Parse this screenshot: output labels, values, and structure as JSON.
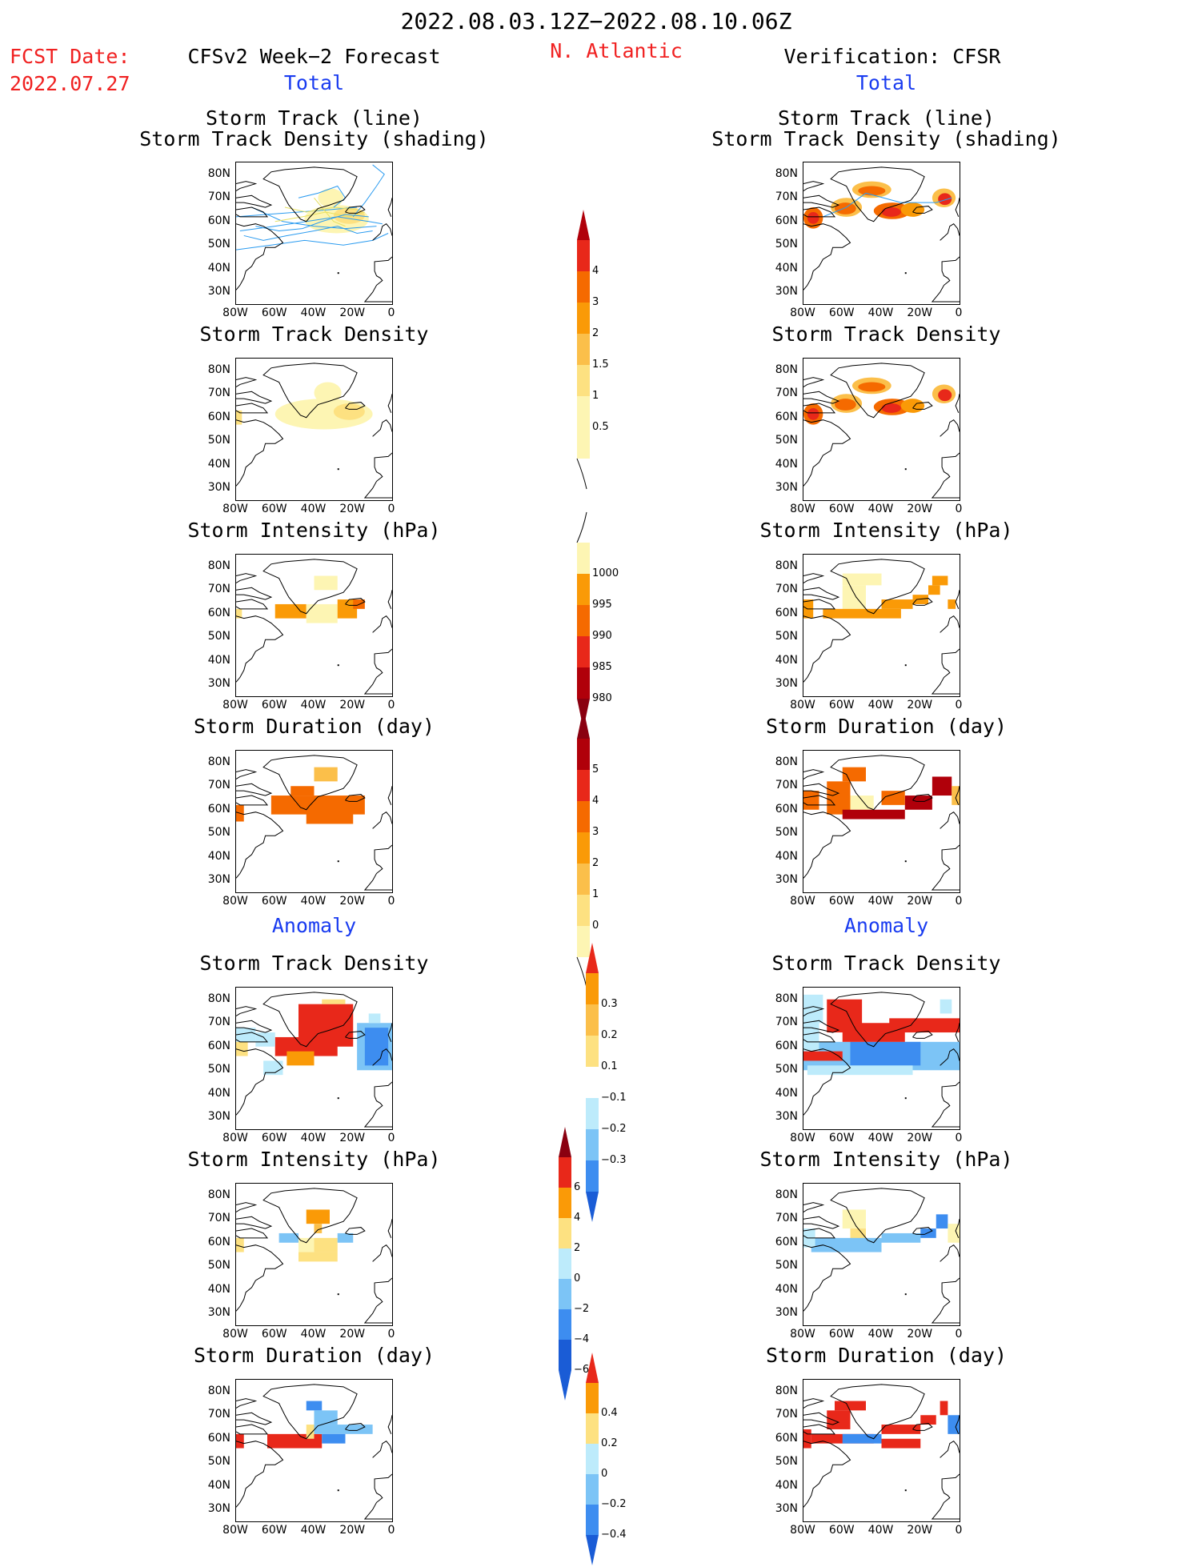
{
  "header": {
    "period": "2022.08.03.12Z−2022.08.10.06Z",
    "fcst_label": "FCST Date:",
    "fcst_date": "2022.07.27",
    "left_title": "CFSv2 Week−2 Forecast",
    "region": "N. Atlantic",
    "right_title": "Verification: CFSR",
    "total_left": "Total",
    "total_right": "Total",
    "anomaly_left": "Anomaly",
    "anomaly_right": "Anomaly"
  },
  "panel_titles": {
    "track_line": "Storm Track (line)",
    "track_density_shading": "Storm Track Density (shading)",
    "track_density": "Storm Track Density",
    "intensity": "Storm Intensity (hPa)",
    "duration": "Storm Duration (day)"
  },
  "axes": {
    "y_ticks": [
      "80N",
      "70N",
      "60N",
      "50N",
      "40N",
      "30N"
    ],
    "x_ticks": [
      "80W",
      "60W",
      "40W",
      "20W",
      "0"
    ]
  },
  "colors": {
    "cream": "#fdf5b3",
    "yellow": "#fde181",
    "light_orange": "#fbbf4a",
    "orange": "#fa9a07",
    "dark_orange": "#f56a00",
    "red": "#e8281a",
    "dark_red": "#b0000a",
    "very_dark_red": "#8a0010",
    "light_blue": "#bdebfb",
    "mid_blue": "#7cc4f6",
    "blue": "#3d8df0",
    "dark_blue": "#1a5cd6",
    "track_blue": "#2a9bf0",
    "track_yellow": "#e8e060"
  },
  "colorbars": [
    {
      "name": "track-density-total",
      "labels": [
        "4",
        "3",
        "2",
        "1.5",
        "1",
        "0.5"
      ]
    },
    {
      "name": "intensity-total",
      "labels": [
        "1000",
        "995",
        "990",
        "985",
        "980"
      ]
    },
    {
      "name": "duration-total",
      "labels": [
        "5",
        "4",
        "3",
        "2",
        "1",
        "0"
      ]
    },
    {
      "name": "track-density-anomaly",
      "labels": [
        "0.3",
        "0.2",
        "0.1",
        "−0.1",
        "−0.2",
        "−0.3"
      ]
    },
    {
      "name": "intensity-anomaly",
      "labels": [
        "6",
        "4",
        "2",
        "0",
        "−2",
        "−4",
        "−6"
      ]
    },
    {
      "name": "duration-anomaly",
      "labels": [
        "0.4",
        "0.2",
        "0",
        "−0.2",
        "−0.4"
      ]
    }
  ],
  "chart_data": [
    {
      "type": "heatmap",
      "panel": "forecast-track-total",
      "title": "Storm Track (line) Storm Track Density (shading)",
      "xlim": [
        -80,
        0
      ],
      "ylim": [
        25,
        85
      ],
      "series_note_colors": [
        "track_blue",
        "track_yellow"
      ]
    },
    {
      "type": "heatmap",
      "panel": "verification-track-total",
      "title": "Storm Track (line) Storm Track Density (shading)",
      "xlim": [
        -80,
        0
      ],
      "ylim": [
        25,
        85
      ]
    },
    {
      "type": "heatmap",
      "panel": "forecast-density-total",
      "title": "Storm Track Density",
      "xlim": [
        -80,
        0
      ],
      "ylim": [
        25,
        85
      ]
    },
    {
      "type": "heatmap",
      "panel": "verification-density-total",
      "title": "Storm Track Density",
      "xlim": [
        -80,
        0
      ],
      "ylim": [
        25,
        85
      ]
    },
    {
      "type": "heatmap",
      "panel": "forecast-intensity-total",
      "title": "Storm Intensity (hPa)",
      "xlim": [
        -80,
        0
      ],
      "ylim": [
        25,
        85
      ]
    },
    {
      "type": "heatmap",
      "panel": "verification-intensity-total",
      "title": "Storm Intensity (hPa)",
      "xlim": [
        -80,
        0
      ],
      "ylim": [
        25,
        85
      ]
    },
    {
      "type": "heatmap",
      "panel": "forecast-duration-total",
      "title": "Storm Duration (day)",
      "xlim": [
        -80,
        0
      ],
      "ylim": [
        25,
        85
      ]
    },
    {
      "type": "heatmap",
      "panel": "verification-duration-total",
      "title": "Storm Duration (day)",
      "xlim": [
        -80,
        0
      ],
      "ylim": [
        25,
        85
      ]
    },
    {
      "type": "heatmap",
      "panel": "forecast-density-anomaly",
      "title": "Storm Track Density",
      "xlim": [
        -80,
        0
      ],
      "ylim": [
        25,
        85
      ]
    },
    {
      "type": "heatmap",
      "panel": "verification-density-anomaly",
      "title": "Storm Track Density",
      "xlim": [
        -80,
        0
      ],
      "ylim": [
        25,
        85
      ]
    },
    {
      "type": "heatmap",
      "panel": "forecast-intensity-anomaly",
      "title": "Storm Intensity (hPa)",
      "xlim": [
        -80,
        0
      ],
      "ylim": [
        25,
        85
      ]
    },
    {
      "type": "heatmap",
      "panel": "verification-intensity-anomaly",
      "title": "Storm Intensity (hPa)",
      "xlim": [
        -80,
        0
      ],
      "ylim": [
        25,
        85
      ]
    },
    {
      "type": "heatmap",
      "panel": "forecast-duration-anomaly",
      "title": "Storm Duration (day)",
      "xlim": [
        -80,
        0
      ],
      "ylim": [
        25,
        85
      ]
    },
    {
      "type": "heatmap",
      "panel": "verification-duration-anomaly",
      "title": "Storm Duration (day)",
      "xlim": [
        -80,
        0
      ],
      "ylim": [
        25,
        85
      ]
    }
  ]
}
